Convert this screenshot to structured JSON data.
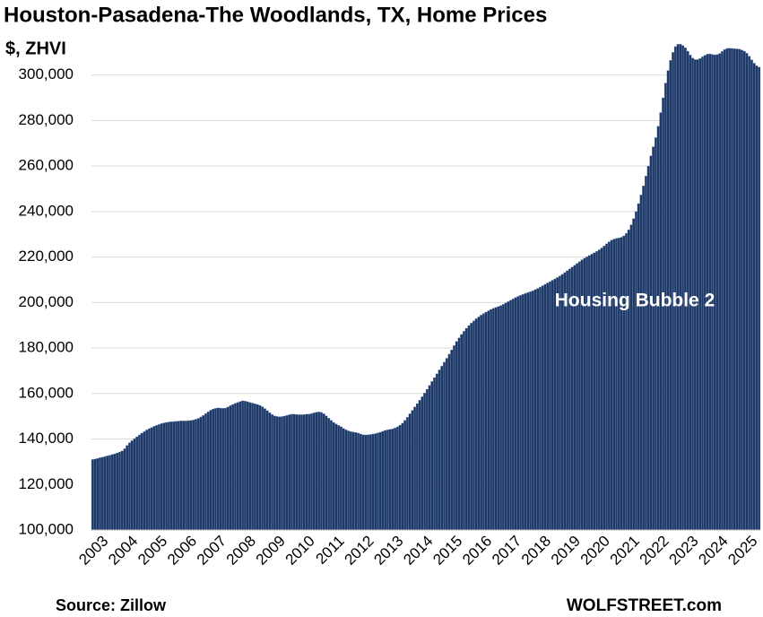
{
  "chart_data": {
    "type": "bar",
    "title": "Houston-Pasadena-The Woodlands, TX, Home Prices",
    "subtitle": "$, ZHVI",
    "annotation": "Housing Bubble 2",
    "source": "Source: Zillow",
    "credit": "WOLFSTREET.com",
    "color": "#1f3864",
    "edge_color": "#7f9fd0",
    "grid": true,
    "ylim": [
      100000,
      318000
    ],
    "yticks": [
      {
        "value": 100000,
        "label": "100,000"
      },
      {
        "value": 120000,
        "label": "120,000"
      },
      {
        "value": 140000,
        "label": "140,000"
      },
      {
        "value": 160000,
        "label": "160,000"
      },
      {
        "value": 180000,
        "label": "180,000"
      },
      {
        "value": 200000,
        "label": "200,000"
      },
      {
        "value": 220000,
        "label": "220,000"
      },
      {
        "value": 240000,
        "label": "240,000"
      },
      {
        "value": 260000,
        "label": "260,000"
      },
      {
        "value": 280000,
        "label": "280,000"
      },
      {
        "value": 300000,
        "label": "300,000"
      }
    ],
    "categories": [
      "2003",
      null,
      null,
      null,
      null,
      null,
      null,
      null,
      null,
      null,
      null,
      null,
      "2004",
      null,
      null,
      null,
      null,
      null,
      null,
      null,
      null,
      null,
      null,
      null,
      "2005",
      null,
      null,
      null,
      null,
      null,
      null,
      null,
      null,
      null,
      null,
      null,
      "2006",
      null,
      null,
      null,
      null,
      null,
      null,
      null,
      null,
      null,
      null,
      null,
      "2007",
      null,
      null,
      null,
      null,
      null,
      null,
      null,
      null,
      null,
      null,
      null,
      "2008",
      null,
      null,
      null,
      null,
      null,
      null,
      null,
      null,
      null,
      null,
      null,
      "2009",
      null,
      null,
      null,
      null,
      null,
      null,
      null,
      null,
      null,
      null,
      null,
      "2010",
      null,
      null,
      null,
      null,
      null,
      null,
      null,
      null,
      null,
      null,
      null,
      "2011",
      null,
      null,
      null,
      null,
      null,
      null,
      null,
      null,
      null,
      null,
      null,
      "2012",
      null,
      null,
      null,
      null,
      null,
      null,
      null,
      null,
      null,
      null,
      null,
      "2013",
      null,
      null,
      null,
      null,
      null,
      null,
      null,
      null,
      null,
      null,
      null,
      "2014",
      null,
      null,
      null,
      null,
      null,
      null,
      null,
      null,
      null,
      null,
      null,
      "2015",
      null,
      null,
      null,
      null,
      null,
      null,
      null,
      null,
      null,
      null,
      null,
      "2016",
      null,
      null,
      null,
      null,
      null,
      null,
      null,
      null,
      null,
      null,
      null,
      "2017",
      null,
      null,
      null,
      null,
      null,
      null,
      null,
      null,
      null,
      null,
      null,
      "2018",
      null,
      null,
      null,
      null,
      null,
      null,
      null,
      null,
      null,
      null,
      null,
      "2019",
      null,
      null,
      null,
      null,
      null,
      null,
      null,
      null,
      null,
      null,
      null,
      "2020",
      null,
      null,
      null,
      null,
      null,
      null,
      null,
      null,
      null,
      null,
      null,
      "2021",
      null,
      null,
      null,
      null,
      null,
      null,
      null,
      null,
      null,
      null,
      null,
      "2022",
      null,
      null,
      null,
      null,
      null,
      null,
      null,
      null,
      null,
      null,
      null,
      "2023",
      null,
      null,
      null,
      null,
      null,
      null,
      null,
      null,
      null,
      null,
      null,
      "2024",
      null,
      null,
      null,
      null,
      null,
      null,
      null,
      null,
      null,
      null,
      null,
      "2025",
      null,
      null,
      null,
      null,
      null,
      null,
      null
    ],
    "values": [
      131000,
      131200,
      131500,
      131800,
      132000,
      132300,
      132600,
      132900,
      133200,
      133500,
      133900,
      134300,
      134800,
      135800,
      137200,
      138400,
      139300,
      140200,
      141000,
      141800,
      142600,
      143300,
      144000,
      144600,
      145100,
      145600,
      146000,
      146400,
      146800,
      147100,
      147300,
      147500,
      147600,
      147700,
      147800,
      147900,
      148000,
      148000,
      148000,
      148100,
      148200,
      148400,
      148700,
      149100,
      149700,
      150400,
      151200,
      152000,
      152700,
      153200,
      153500,
      153700,
      153600,
      153500,
      153600,
      154100,
      154700,
      155200,
      155700,
      156100,
      156500,
      156800,
      156700,
      156400,
      156100,
      155800,
      155500,
      155200,
      154800,
      154200,
      153400,
      152500,
      151600,
      150800,
      150200,
      149900,
      149800,
      149900,
      150100,
      150400,
      150700,
      150900,
      150900,
      150800,
      150700,
      150700,
      150800,
      150900,
      151000,
      151200,
      151500,
      151800,
      151900,
      151700,
      151100,
      150200,
      149200,
      148200,
      147300,
      146600,
      146000,
      145400,
      144700,
      144100,
      143600,
      143300,
      143100,
      142900,
      142600,
      142200,
      141900,
      141800,
      141900,
      142000,
      142200,
      142400,
      142700,
      143000,
      143400,
      143800,
      144100,
      144300,
      144500,
      144900,
      145400,
      146100,
      147000,
      148200,
      149600,
      151100,
      152600,
      154100,
      155600,
      157100,
      158600,
      160200,
      161900,
      163600,
      165300,
      167000,
      168700,
      170400,
      172100,
      173800,
      175500,
      177300,
      179200,
      181100,
      182900,
      184500,
      186000,
      187400,
      188700,
      189900,
      191000,
      192000,
      192900,
      193700,
      194500,
      195200,
      195800,
      196400,
      197000,
      197500,
      197900,
      198300,
      198700,
      199200,
      199800,
      200400,
      201000,
      201600,
      202200,
      202700,
      203200,
      203600,
      204000,
      204400,
      204800,
      205200,
      205700,
      206200,
      206800,
      207400,
      208000,
      208600,
      209200,
      209800,
      210400,
      211000,
      211700,
      212400,
      213200,
      214000,
      214800,
      215600,
      216400,
      217200,
      218000,
      218800,
      219500,
      220100,
      220700,
      221300,
      221900,
      222500,
      223200,
      224000,
      224900,
      225800,
      226700,
      227400,
      227900,
      228200,
      228400,
      228700,
      229300,
      230400,
      232000,
      234200,
      236900,
      240000,
      243500,
      247300,
      251300,
      255600,
      260000,
      264500,
      268500,
      272500,
      277500,
      283500,
      290000,
      296500,
      302000,
      306500,
      310000,
      312500,
      313500,
      313600,
      313000,
      312000,
      310500,
      308800,
      307500,
      306800,
      306800,
      307300,
      308000,
      308700,
      309200,
      309300,
      309100,
      308900,
      309000,
      309500,
      310400,
      311200,
      311700,
      311800,
      311700,
      311600,
      311500,
      311400,
      311000,
      310500,
      309600,
      308300,
      306700,
      305200,
      304100,
      303500
    ]
  }
}
